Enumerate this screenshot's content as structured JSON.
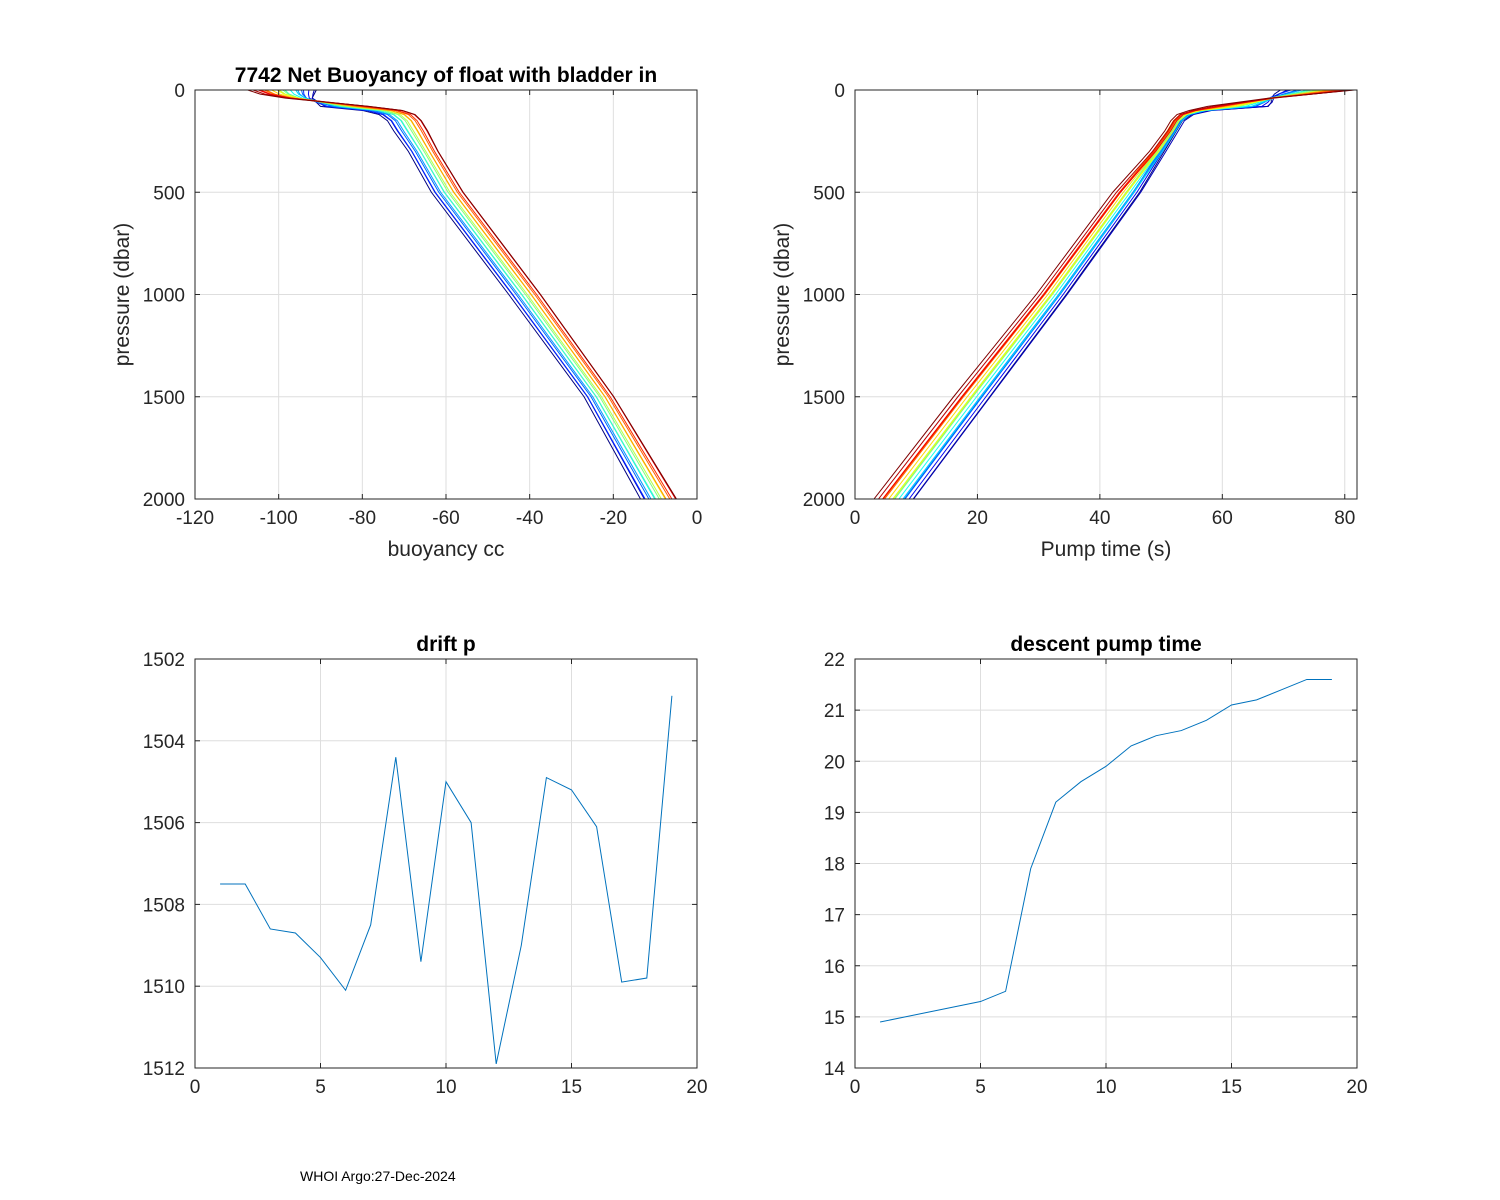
{
  "footer": "WHOI Argo:27-Dec-2024",
  "chart_data": [
    {
      "id": "buoyancy",
      "type": "line",
      "title": "7742 Net Buoyancy of float with bladder in",
      "xlabel": "buoyancy cc",
      "ylabel": "pressure (dbar)",
      "xlim": [
        -120,
        0
      ],
      "ylim": [
        0,
        2000
      ],
      "y_reversed": true,
      "xticks": [
        -120,
        -100,
        -80,
        -60,
        -40,
        -20,
        0
      ],
      "yticks": [
        0,
        500,
        1000,
        1500,
        2000
      ],
      "colormap": "jet",
      "profile_count": 19,
      "pressure": [
        0,
        20,
        40,
        60,
        80,
        100,
        120,
        150,
        200,
        300,
        500,
        1000,
        1500,
        2000
      ],
      "profile_first": [
        -91,
        -91.5,
        -92,
        -91,
        -90,
        -80,
        -76,
        -74,
        -72.5,
        -69,
        -63.5,
        -45,
        -27,
        -13.5
      ],
      "profile_last": [
        -107,
        -104,
        -98,
        -88,
        -78,
        -70,
        -67,
        -65.5,
        -64,
        -61.5,
        -55.5,
        -37,
        -19.5,
        -4.5
      ]
    },
    {
      "id": "pumptime",
      "type": "line",
      "title": "",
      "xlabel": "Pump time (s)",
      "ylabel": "pressure (dbar)",
      "xlim": [
        0,
        82
      ],
      "ylim": [
        0,
        2000
      ],
      "y_reversed": true,
      "xticks": [
        0,
        20,
        40,
        60,
        80
      ],
      "yticks": [
        0,
        500,
        1000,
        1500,
        2000
      ],
      "colormap": "jet",
      "profile_count": 19,
      "pressure": [
        0,
        20,
        40,
        60,
        80,
        100,
        120,
        150,
        200,
        300,
        500,
        1000,
        1500,
        2000
      ],
      "profile_first": [
        69.5,
        68.5,
        68,
        68,
        67.5,
        58,
        55,
        53.5,
        52.5,
        50.5,
        46.5,
        34.5,
        22,
        9.5
      ],
      "profile_last": [
        82,
        75,
        68,
        63,
        58,
        55,
        53,
        52,
        51,
        48.5,
        42.5,
        30,
        16.5,
        3.5
      ]
    },
    {
      "id": "driftp",
      "type": "line",
      "title": "drift p",
      "xlabel": "",
      "ylabel": "",
      "xlim": [
        0,
        20
      ],
      "ylim": [
        1502,
        1512
      ],
      "y_reversed": true,
      "xticks": [
        0,
        5,
        10,
        15,
        20
      ],
      "yticks": [
        1502,
        1504,
        1506,
        1508,
        1510,
        1512
      ],
      "color": "#0072bd",
      "x": [
        1,
        2,
        3,
        4,
        5,
        6,
        7,
        8,
        9,
        10,
        11,
        12,
        13,
        14,
        15,
        16,
        17,
        18,
        19
      ],
      "y": [
        1507.5,
        1507.5,
        1508.6,
        1508.7,
        1509.3,
        1510.1,
        1508.5,
        1504.4,
        1509.4,
        1505.0,
        1506.0,
        1511.9,
        1509.0,
        1504.9,
        1505.2,
        1506.1,
        1509.9,
        1509.8,
        1502.9
      ]
    },
    {
      "id": "descentpump",
      "type": "line",
      "title": "descent pump time",
      "xlabel": "",
      "ylabel": "",
      "xlim": [
        0,
        20
      ],
      "ylim": [
        14,
        22
      ],
      "y_reversed": false,
      "xticks": [
        0,
        5,
        10,
        15,
        20
      ],
      "yticks": [
        14,
        15,
        16,
        17,
        18,
        19,
        20,
        21,
        22
      ],
      "color": "#0072bd",
      "x": [
        1,
        2,
        3,
        4,
        5,
        6,
        7,
        8,
        9,
        10,
        11,
        12,
        13,
        14,
        15,
        16,
        17,
        18,
        19
      ],
      "y": [
        14.9,
        15.0,
        15.1,
        15.2,
        15.3,
        15.5,
        17.9,
        19.2,
        19.6,
        19.9,
        20.3,
        20.5,
        20.6,
        20.8,
        21.1,
        21.2,
        21.4,
        21.6,
        21.6
      ]
    }
  ]
}
